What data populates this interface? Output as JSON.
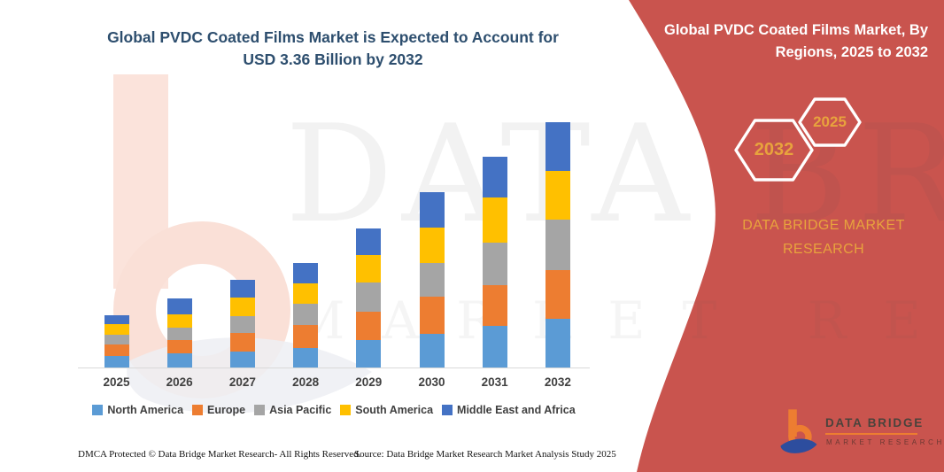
{
  "title": {
    "line1": "Global PVDC Coated Films Market is Expected to Account for",
    "line2": "USD 3.36 Billion by 2032",
    "color": "#2d4e6e"
  },
  "banner": {
    "heading_line1": "Global PVDC Coated Films Market, By",
    "heading_line2": "Regions, 2025 to 2032",
    "bg_color": "#c9544e",
    "accent_text_color": "#e8a33d",
    "hexagon_back_label": "2032",
    "hexagon_front_label": "2025",
    "brand_line1": "DATA BRIDGE MARKET",
    "brand_line2": "RESEARCH"
  },
  "logo": {
    "name": "DATA BRIDGE",
    "tagline": "MARKET RESEARCH",
    "orange": "#ed7d31",
    "blue": "#2d4d9e"
  },
  "watermark": {
    "text_line1": "DATA BRIDGE",
    "text_line2": "MARKET RESEARCH"
  },
  "footer": {
    "dmca": "DMCA Protected © Data Bridge Market Research- All Rights Reserved.",
    "source": "Source: Data Bridge Market Research Market Analysis Study 2025"
  },
  "chart_data": {
    "type": "bar",
    "stacked": true,
    "units_hint": "USD Billion (2032 total = 3.36 per title)",
    "categories": [
      "2025",
      "2026",
      "2027",
      "2028",
      "2029",
      "2030",
      "2031",
      "2032"
    ],
    "series": [
      {
        "name": "North America",
        "color": "#5B9BD5",
        "values": [
          0.16,
          0.2,
          0.22,
          0.27,
          0.38,
          0.46,
          0.57,
          0.67
        ]
      },
      {
        "name": "Europe",
        "color": "#ED7D31",
        "values": [
          0.15,
          0.18,
          0.25,
          0.31,
          0.38,
          0.51,
          0.56,
          0.67
        ]
      },
      {
        "name": "Asia Pacific",
        "color": "#A5A5A5",
        "values": [
          0.14,
          0.17,
          0.24,
          0.29,
          0.4,
          0.46,
          0.58,
          0.69
        ]
      },
      {
        "name": "South America",
        "color": "#FFC000",
        "values": [
          0.14,
          0.18,
          0.25,
          0.29,
          0.38,
          0.49,
          0.62,
          0.67
        ]
      },
      {
        "name": "Middle East and Africa",
        "color": "#4472C4",
        "values": [
          0.13,
          0.22,
          0.24,
          0.27,
          0.36,
          0.48,
          0.56,
          0.66
        ]
      }
    ],
    "totals": [
      0.72,
      0.95,
      1.2,
      1.43,
      1.9,
      2.4,
      2.89,
      3.36
    ],
    "ylim": [
      0,
      3.6
    ],
    "grid": false,
    "y_axis_visible": false,
    "legend_position": "bottom"
  }
}
